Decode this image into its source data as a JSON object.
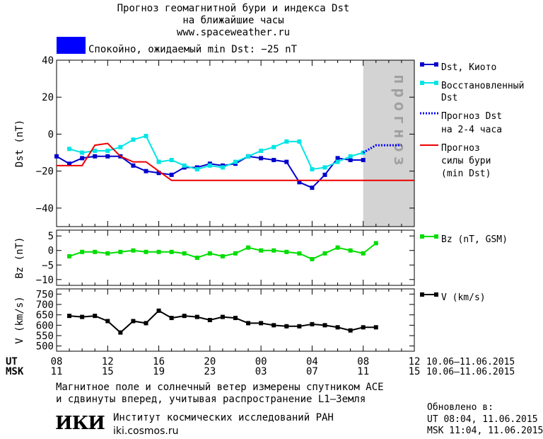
{
  "header": {
    "title_line1": "Прогноз геомагнитной бури и индекса Dst",
    "title_line2": "на ближайшие часы",
    "site": "www.spaceweather.ru",
    "status_text": "Спокойно, ожидаемый min Dst: −25 nT",
    "status_color": "#0000ff"
  },
  "footer": {
    "note_line1": "Магнитное поле и солнечный ветер измерены спутником ACE",
    "note_line2": "и сдвинуты вперед, учитывая распространение L1–Земля",
    "institute_logo": "ИКИ",
    "institute_name": "Институт космических исследований РАН",
    "institute_site": "iki.cosmos.ru",
    "updated_label": "Обновлено в:",
    "updated_ut": "UT  08:04, 11.06.2015",
    "updated_msk": "MSK 11:04, 11.06.2015"
  },
  "time_axis": {
    "ut_label": "UT",
    "msk_label": "MSK",
    "ut_ticks": [
      "08",
      "12",
      "16",
      "20",
      "00",
      "04",
      "08",
      "12"
    ],
    "msk_ticks": [
      "11",
      "15",
      "19",
      "23",
      "03",
      "07",
      "11",
      "15"
    ],
    "date_range_ut": "10.06–11.06.2015",
    "date_range_msk": "10.06–11.06.2015"
  },
  "chart_data": [
    {
      "type": "line",
      "ylabel": "Dst (nT)",
      "ylim": [
        -50,
        40
      ],
      "yticks": [
        40,
        20,
        0,
        -20,
        -40
      ],
      "xlim": [
        8,
        36
      ],
      "forecast_region": {
        "from": 32,
        "to": 36,
        "label": "прогноз",
        "color": "#d3d3d3"
      },
      "series": [
        {
          "name": "Dst, Киото",
          "color": "#0000cc",
          "x": [
            8,
            9,
            10,
            11,
            12,
            13,
            14,
            15,
            16,
            17,
            18,
            19,
            20,
            21,
            22,
            23,
            24,
            25,
            26,
            27,
            28,
            29,
            30,
            31,
            32
          ],
          "y": [
            -12,
            -16,
            -13,
            -12,
            -12,
            -12,
            -17,
            -20,
            -21,
            -22,
            -18,
            -18,
            -16,
            -17,
            -16,
            -12,
            -13,
            -14,
            -15,
            -26,
            -29,
            -22,
            -13,
            -14,
            -14
          ]
        },
        {
          "name": "Восстановленный Dst",
          "color": "#00e5e5",
          "x": [
            9,
            10,
            11,
            12,
            13,
            14,
            15,
            16,
            17,
            18,
            19,
            20,
            21,
            22,
            23,
            24,
            25,
            26,
            27,
            28,
            29,
            30,
            31,
            32
          ],
          "y": [
            -8,
            -10,
            -9,
            -9,
            -7,
            -3,
            -1,
            -15,
            -14,
            -17,
            -19,
            -17,
            -18,
            -15,
            -12,
            -9,
            -7,
            -4,
            -4,
            -19,
            -18,
            -15,
            -12,
            -10
          ]
        },
        {
          "name": "Прогноз Dst на 2-4 часа",
          "color": "#0000ff",
          "style": "dotted",
          "x": [
            32,
            33,
            34,
            35
          ],
          "y": [
            -10,
            -6,
            -6,
            -6
          ]
        },
        {
          "name": "Прогноз силы бури (min Dst)",
          "color": "#ee0000",
          "x": [
            8,
            10,
            11,
            12,
            13,
            14,
            15,
            16,
            17,
            18,
            19,
            20,
            36
          ],
          "y": [
            -17,
            -17,
            -6,
            -5,
            -12,
            -15,
            -15,
            -20,
            -25,
            -25,
            -25,
            -25,
            -25
          ]
        }
      ],
      "legend": [
        "Dst, Киото",
        "Восстановленный Dst",
        "Прогноз Dst на 2-4 часа",
        "Прогноз силы бури (min Dst)"
      ],
      "legend_lines": [
        [
          "Dst, Киото"
        ],
        [
          "Восстановленный",
          "Dst"
        ],
        [
          "Прогноз Dst",
          "на 2-4 часа"
        ],
        [
          "Прогноз",
          "силы бури",
          "(min Dst)"
        ]
      ]
    },
    {
      "type": "line",
      "ylabel": "Bz (nT)",
      "ylim": [
        -12,
        7
      ],
      "yticks": [
        5,
        0,
        -5,
        -10
      ],
      "xlim": [
        8,
        36
      ],
      "series": [
        {
          "name": "Bz (nT, GSM)",
          "color": "#00dd00",
          "x": [
            9,
            10,
            11,
            12,
            13,
            14,
            15,
            16,
            17,
            18,
            19,
            20,
            21,
            22,
            23,
            24,
            25,
            26,
            27,
            28,
            29,
            30,
            31,
            32,
            33
          ],
          "y": [
            -2,
            -0.5,
            -0.5,
            -1,
            -0.5,
            0,
            -0.5,
            -0.5,
            -0.5,
            -1,
            -2.5,
            -1,
            -2,
            -1,
            1,
            0,
            0,
            -0.5,
            -1,
            -3,
            -1,
            1,
            0,
            -1,
            2.5
          ]
        }
      ],
      "legend": [
        "Bz (nT, GSM)"
      ]
    },
    {
      "type": "line",
      "ylabel": "V (km/s)",
      "ylim": [
        475,
        775
      ],
      "yticks": [
        750,
        700,
        650,
        600,
        550,
        500
      ],
      "xlim": [
        8,
        36
      ],
      "series": [
        {
          "name": "V (km/s)",
          "color": "#000000",
          "x": [
            9,
            10,
            11,
            12,
            13,
            14,
            15,
            16,
            17,
            18,
            19,
            20,
            21,
            22,
            23,
            24,
            25,
            26,
            27,
            28,
            29,
            30,
            31,
            32,
            33
          ],
          "y": [
            645,
            640,
            645,
            620,
            565,
            620,
            610,
            670,
            635,
            645,
            640,
            625,
            640,
            635,
            610,
            610,
            600,
            595,
            595,
            605,
            600,
            590,
            575,
            590,
            590
          ]
        }
      ],
      "legend": [
        "V (km/s)"
      ]
    }
  ]
}
